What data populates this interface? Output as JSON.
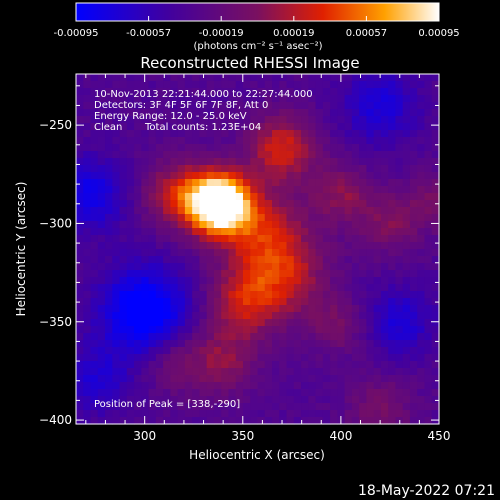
{
  "chart_data": {
    "type": "heatmap",
    "title": "Reconstructed RHESSI Image",
    "xlabel": "Heliocentric X (arcsec)",
    "ylabel": "Heliocentric Y (arcsec)",
    "xlim": [
      265,
      450
    ],
    "ylim": [
      -402,
      -224
    ],
    "x_ticks": [
      300,
      350,
      400,
      450
    ],
    "y_ticks": [
      -250,
      -300,
      -350,
      -400
    ],
    "colorbar": {
      "range": [
        -0.00095,
        0.00095
      ],
      "tick_values": [
        -0.00095,
        -0.00057,
        -0.00019,
        0.00019,
        0.00057,
        0.00095
      ],
      "tick_labels": [
        "-0.00095",
        "-0.00057",
        "-0.00019",
        "0.00019",
        "0.00057",
        "0.00095"
      ],
      "label": "(photons cm⁻² s⁻¹ asec⁻²)",
      "colormap": [
        [
          0,
          "#0000ff"
        ],
        [
          0.25,
          "#4000a0"
        ],
        [
          0.5,
          "#7a1060"
        ],
        [
          0.68,
          "#e02000"
        ],
        [
          0.85,
          "#ffa000"
        ],
        [
          1,
          "#ffffff"
        ]
      ]
    },
    "annotations": {
      "time": "10-Nov-2013 22:21:44.000 to 22:27:44.000",
      "detectors": "Detectors: 3F 4F 5F 6F 7F 8F, Att 0",
      "energy": "Energy Range: 12.0 - 25.0 keV",
      "clean": "Clean",
      "counts": "Total counts: 1.23E+04",
      "peak": "Position of Peak = [338,-290]"
    },
    "peak": {
      "x": 338,
      "y": -290,
      "value": 0.00095
    },
    "sources": [
      {
        "x": 338,
        "y": -290,
        "sigma": 11,
        "amp": 0.0017
      },
      {
        "x": 370,
        "y": -262,
        "sigma": 12,
        "amp": 0.00065
      },
      {
        "x": 316,
        "y": -285,
        "sigma": 12,
        "amp": 0.00055
      },
      {
        "x": 370,
        "y": -325,
        "sigma": 16,
        "amp": 0.0006
      },
      {
        "x": 350,
        "y": -340,
        "sigma": 13,
        "amp": 0.0005
      },
      {
        "x": 360,
        "y": -302,
        "sigma": 14,
        "amp": 0.00045
      },
      {
        "x": 400,
        "y": -285,
        "sigma": 11,
        "amp": 0.0004
      },
      {
        "x": 425,
        "y": -300,
        "sigma": 11,
        "amp": 0.00035
      },
      {
        "x": 340,
        "y": -370,
        "sigma": 12,
        "amp": 0.0004
      },
      {
        "x": 315,
        "y": -370,
        "sigma": 11,
        "amp": 0.0003
      },
      {
        "x": 398,
        "y": -352,
        "sigma": 10,
        "amp": 0.0003
      },
      {
        "x": 420,
        "y": -395,
        "sigma": 12,
        "amp": 0.0003
      },
      {
        "x": 448,
        "y": -288,
        "sigma": 10,
        "amp": 0.0003
      },
      {
        "x": 300,
        "y": -345,
        "sigma": 16,
        "amp": -0.00075
      },
      {
        "x": 272,
        "y": -285,
        "sigma": 13,
        "amp": -0.0005
      },
      {
        "x": 420,
        "y": -240,
        "sigma": 14,
        "amp": -0.0004
      },
      {
        "x": 430,
        "y": -350,
        "sigma": 12,
        "amp": -0.0004
      },
      {
        "x": 275,
        "y": -380,
        "sigma": 12,
        "amp": -0.00035
      }
    ]
  },
  "footer_date": "18-May-2022 07:21"
}
